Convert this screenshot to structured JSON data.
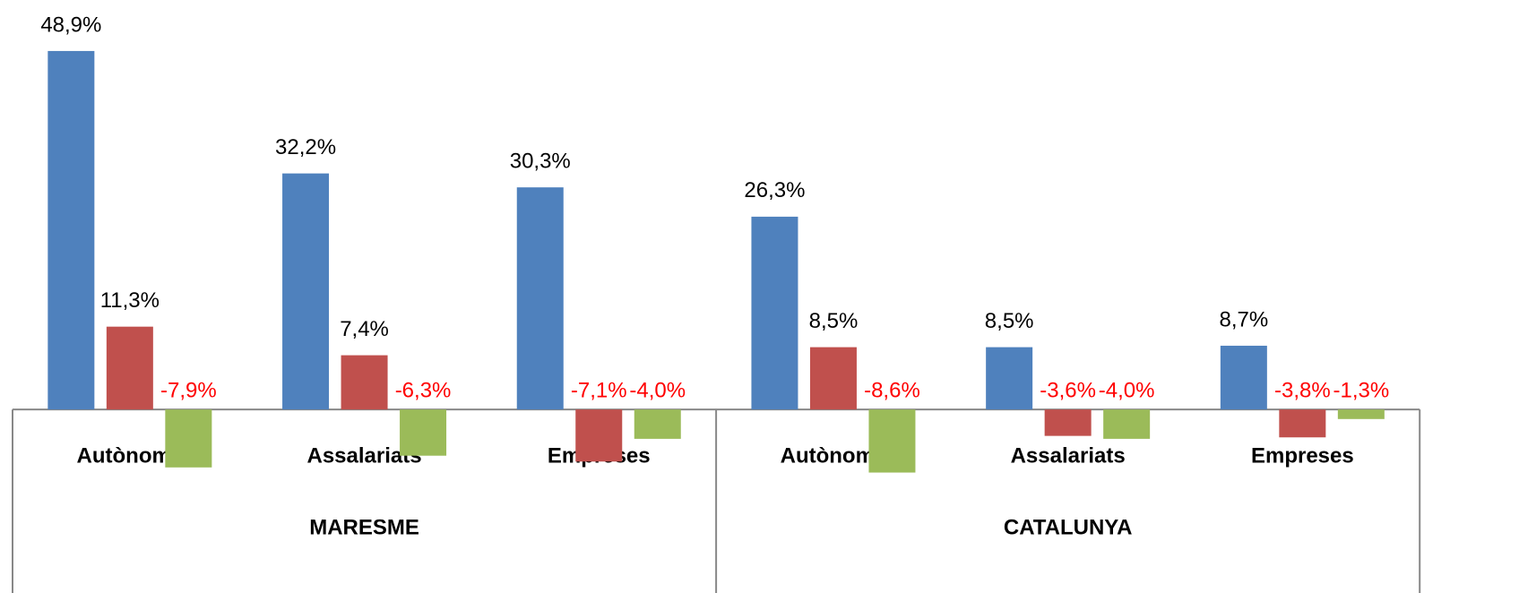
{
  "chart_data": {
    "type": "bar",
    "groups": [
      {
        "label": "MARESME",
        "categories": [
          "Autònoms",
          "Assalariats",
          "Empreses"
        ]
      },
      {
        "label": "CATALUNYA",
        "categories": [
          "Autònoms",
          "Assalariats",
          "Empreses"
        ]
      }
    ],
    "series": [
      {
        "color": "#4f81bd",
        "values": [
          48.9,
          32.2,
          30.3,
          26.3,
          8.5,
          8.7
        ],
        "value_labels": [
          "48,9%",
          "32,2%",
          "30,3%",
          "26,3%",
          "8,5%",
          "8,7%"
        ]
      },
      {
        "color": "#c0504d",
        "values": [
          11.3,
          7.4,
          -7.1,
          8.5,
          -3.6,
          -3.8
        ],
        "value_labels": [
          "11,3%",
          "7,4%",
          "-7,1%",
          "8,5%",
          "-3,6%",
          "-3,8%"
        ]
      },
      {
        "color": "#9bbb59",
        "values": [
          -7.9,
          -6.3,
          -4.0,
          -8.6,
          -4.0,
          -1.3
        ],
        "value_labels": [
          "-7,9%",
          "-6,3%",
          "-4,0%",
          "-8,6%",
          "-4,0%",
          "-1,3%"
        ]
      }
    ],
    "ylim": [
      -10,
      55
    ],
    "label_color": "#000000",
    "negative_label_color": "#ff0000"
  }
}
